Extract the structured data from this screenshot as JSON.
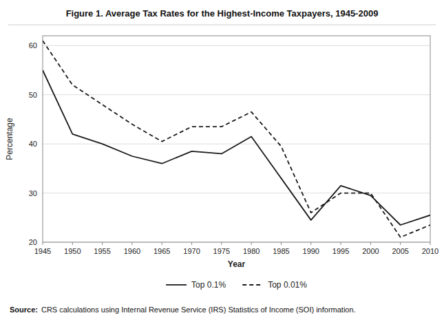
{
  "chart_data": {
    "type": "line",
    "title": "Figure 1. Average Tax Rates for the Highest-Income Taxpayers, 1945-2009",
    "x_label": "Year",
    "y_label": "Percentage",
    "source_label": "Source:",
    "source": "CRS calculations using Internal Revenue Service (IRS) Statistics of Income (SOI) information.",
    "x": [
      1945,
      1950,
      1955,
      1960,
      1965,
      1970,
      1975,
      1980,
      1985,
      1990,
      1995,
      2000,
      2005,
      2010
    ],
    "series": [
      {
        "name": "Top 0.1%",
        "color": "#1a1a1a",
        "line_style": "solid",
        "values": [
          55.0,
          42.0,
          40.0,
          37.5,
          36.0,
          38.5,
          38.0,
          41.5,
          33.0,
          24.5,
          31.5,
          29.5,
          23.5,
          25.5
        ]
      },
      {
        "name": "Top 0.01%",
        "color": "#1a1a1a",
        "line_style": "dashed",
        "values": [
          61.0,
          52.0,
          48.0,
          44.0,
          40.5,
          43.5,
          43.5,
          46.5,
          39.5,
          26.0,
          30.0,
          30.0,
          21.0,
          23.5
        ]
      }
    ],
    "xlim": [
      1945,
      2010
    ],
    "ylim": [
      20,
      62
    ],
    "xticks": [
      1945,
      1950,
      1955,
      1960,
      1965,
      1970,
      1975,
      1980,
      1985,
      1990,
      1995,
      2000,
      2005,
      2010
    ],
    "yticks": [
      20,
      30,
      40,
      50,
      60
    ],
    "grid": true,
    "legend": "bottom"
  }
}
